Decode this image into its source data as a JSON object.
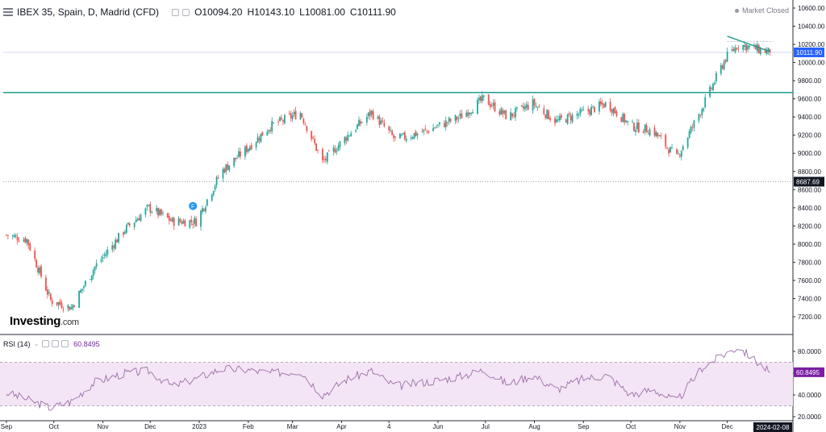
{
  "header": {
    "title": "IBEX 35, Spain, D, Madrid (CFD)",
    "open": "O10094.20",
    "high": "H10143.10",
    "low": "L10081.00",
    "close": "C10111.90"
  },
  "status": {
    "label": "Market Closed"
  },
  "logo": {
    "name": "Investing",
    "suffix": ".com"
  },
  "rsi_header": {
    "label": "RSI (14)",
    "value": "60.8495"
  },
  "colors": {
    "up": "#26a69a",
    "down": "#ef5350",
    "rsi_line": "#9c6fa8",
    "rsi_band": "#f3e5f5",
    "support": "#1f9e8d",
    "price_badge": "#2962ff",
    "ref_badge": "#131722"
  },
  "chart_data": [
    {
      "type": "candlestick",
      "title": "IBEX 35, Spain, D, Madrid (CFD)",
      "ylim": [
        7050,
        10650
      ],
      "y_ticks": [
        "10600.00",
        "10400.00",
        "10200.00",
        "10000.00",
        "9800.00",
        "9600.00",
        "9400.00",
        "9200.00",
        "9000.00",
        "8800.00",
        "8600.00",
        "8400.00",
        "8200.00",
        "8000.00",
        "7800.00",
        "7600.00",
        "7400.00",
        "7200.00"
      ],
      "x_ticks": [
        "Sep",
        "Oct",
        "Nov",
        "Dec",
        "2023",
        "Feb",
        "Mar",
        "Apr",
        "4",
        "Jun",
        "Jul",
        "Aug",
        "Sep",
        "Oct",
        "Nov",
        "Dec"
      ],
      "x_tick_values": [
        "2022-09-01",
        "2022-10-01",
        "2022-11-01",
        "2022-12-01",
        "2023-01-01",
        "2023-02-01",
        "2023-03-01",
        "2023-04-01",
        "2023-05-01",
        "2023-06-01",
        "2023-07-01",
        "2023-08-01",
        "2023-09-01",
        "2023-10-01",
        "2023-11-01",
        "2023-12-01"
      ],
      "cursor_date": "2024-02-08",
      "current_price": "10111.90",
      "reference_price": "8687.69",
      "support_level": 9670,
      "resistance_trend": {
        "from": [
          "2023-12-01",
          10290
        ],
        "to": [
          "2023-12-28",
          10120
        ]
      },
      "key_closes": [
        [
          "2022-09-01",
          8100
        ],
        [
          "2022-09-14",
          8050
        ],
        [
          "2022-09-29",
          7380
        ],
        [
          "2022-10-12",
          7300
        ],
        [
          "2022-10-27",
          7750
        ],
        [
          "2022-11-15",
          8160
        ],
        [
          "2022-11-30",
          8400
        ],
        [
          "2022-12-15",
          8250
        ],
        [
          "2022-12-30",
          8250
        ],
        [
          "2023-01-15",
          8800
        ],
        [
          "2023-01-31",
          9050
        ],
        [
          "2023-02-15",
          9300
        ],
        [
          "2023-03-06",
          9450
        ],
        [
          "2023-03-20",
          8900
        ],
        [
          "2023-04-05",
          9200
        ],
        [
          "2023-04-20",
          9450
        ],
        [
          "2023-05-05",
          9150
        ],
        [
          "2023-05-25",
          9250
        ],
        [
          "2023-06-15",
          9400
        ],
        [
          "2023-06-30",
          9600
        ],
        [
          "2023-07-15",
          9400
        ],
        [
          "2023-07-31",
          9550
        ],
        [
          "2023-08-15",
          9350
        ],
        [
          "2023-09-01",
          9450
        ],
        [
          "2023-09-16",
          9550
        ],
        [
          "2023-10-01",
          9300
        ],
        [
          "2023-10-15",
          9250
        ],
        [
          "2023-10-30",
          8950
        ],
        [
          "2023-11-15",
          9500
        ],
        [
          "2023-11-30",
          10050
        ],
        [
          "2023-12-08",
          10200
        ],
        [
          "2023-12-28",
          10111.9
        ]
      ]
    },
    {
      "type": "line",
      "title": "RSI (14)",
      "ylim": [
        18,
        92
      ],
      "y_ticks": [
        "80.0000",
        "60.0000",
        "40.0000",
        "20.0000"
      ],
      "band": [
        30,
        70
      ],
      "current_value": "60.8495",
      "key_values": [
        [
          "2022-09-01",
          42
        ],
        [
          "2022-09-14",
          36
        ],
        [
          "2022-09-29",
          28
        ],
        [
          "2022-10-12",
          34
        ],
        [
          "2022-10-27",
          52
        ],
        [
          "2022-11-15",
          60
        ],
        [
          "2022-11-30",
          62
        ],
        [
          "2022-12-15",
          48
        ],
        [
          "2022-12-30",
          55
        ],
        [
          "2023-01-15",
          64
        ],
        [
          "2023-01-31",
          63
        ],
        [
          "2023-02-15",
          60
        ],
        [
          "2023-03-06",
          62
        ],
        [
          "2023-03-20",
          40
        ],
        [
          "2023-04-05",
          55
        ],
        [
          "2023-04-20",
          62
        ],
        [
          "2023-05-05",
          48
        ],
        [
          "2023-05-25",
          52
        ],
        [
          "2023-06-15",
          57
        ],
        [
          "2023-06-30",
          63
        ],
        [
          "2023-07-15",
          50
        ],
        [
          "2023-07-31",
          58
        ],
        [
          "2023-08-15",
          45
        ],
        [
          "2023-09-01",
          55
        ],
        [
          "2023-09-16",
          58
        ],
        [
          "2023-10-01",
          40
        ],
        [
          "2023-10-15",
          45
        ],
        [
          "2023-10-30",
          34
        ],
        [
          "2023-11-15",
          65
        ],
        [
          "2023-11-30",
          78
        ],
        [
          "2023-12-08",
          84
        ],
        [
          "2023-12-28",
          60.85
        ]
      ]
    }
  ]
}
